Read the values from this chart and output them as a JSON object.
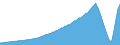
{
  "values": [
    100,
    108,
    105,
    115,
    112,
    118,
    125,
    120,
    130,
    128,
    135,
    132,
    140,
    138,
    145,
    142,
    150,
    155,
    152,
    160,
    158,
    165,
    162,
    170,
    175,
    172,
    180,
    185,
    182,
    190,
    195,
    200,
    210,
    205,
    215,
    220,
    230,
    240,
    250,
    260,
    270,
    280,
    295,
    285,
    300,
    315,
    310,
    330,
    350,
    340,
    360,
    380,
    370,
    395,
    410,
    420,
    440,
    430,
    460,
    480,
    470,
    490,
    510,
    500,
    520,
    540,
    560,
    580,
    600,
    580,
    620,
    640,
    660,
    650,
    670,
    690,
    710,
    730,
    760,
    750,
    780,
    810,
    840,
    870,
    900,
    920,
    950,
    980,
    920,
    880,
    820,
    750,
    680,
    600,
    520,
    450,
    380,
    310,
    240,
    180,
    150,
    120,
    200,
    320,
    450,
    580,
    710,
    840,
    900,
    950
  ],
  "fill_color": "#5aafe0",
  "line_color": "#3a90c8",
  "background_color": "#ffffff",
  "ylim_min": 60,
  "ylim_max": 1050
}
